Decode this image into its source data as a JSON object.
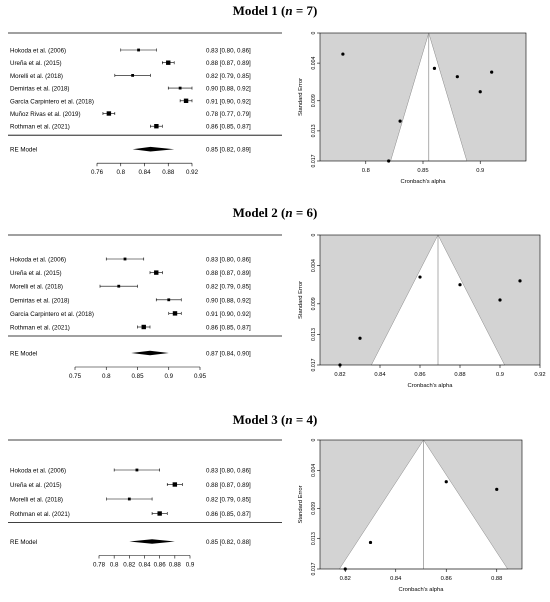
{
  "chart_data": [
    {
      "type": "forest",
      "title": "Model 1 (n = 7)",
      "title_main": "Model 1",
      "title_n": "n",
      "title_eq": " = 7",
      "studies": [
        {
          "label": "Hokoda et al. (2006)",
          "est": 0.83,
          "lo": 0.8,
          "hi": 0.86,
          "ci_text": "0.83 [0.80, 0.86]"
        },
        {
          "label": "Ureña et al. (2015)",
          "est": 0.88,
          "lo": 0.87,
          "hi": 0.89,
          "ci_text": "0.88 [0.87, 0.89]"
        },
        {
          "label": "Morelli et al. (2018)",
          "est": 0.82,
          "lo": 0.79,
          "hi": 0.85,
          "ci_text": "0.82 [0.79, 0.85]"
        },
        {
          "label": "Demirtas et al. (2018)",
          "est": 0.9,
          "lo": 0.88,
          "hi": 0.92,
          "ci_text": "0.90 [0.88, 0.92]"
        },
        {
          "label": "García Carpintero et al. (2018)",
          "est": 0.91,
          "lo": 0.9,
          "hi": 0.92,
          "ci_text": "0.91 [0.90, 0.92]"
        },
        {
          "label": "Muñoz Rivas et al. (2019)",
          "est": 0.78,
          "lo": 0.77,
          "hi": 0.79,
          "ci_text": "0.78 [0.77, 0.79]"
        },
        {
          "label": "Rothman et al. (2021)",
          "est": 0.86,
          "lo": 0.85,
          "hi": 0.87,
          "ci_text": "0.86 [0.85, 0.87]"
        }
      ],
      "re_model": {
        "label": "RE Model",
        "est": 0.85,
        "lo": 0.82,
        "hi": 0.89,
        "ci_text": "0.85 [0.82, 0.89]"
      },
      "xticks": [
        0.76,
        0.8,
        0.84,
        0.88,
        0.92
      ],
      "xtick_labels": [
        "0.76",
        "0.8",
        "0.84",
        "0.88",
        "0.92"
      ],
      "xlim": [
        0.76,
        0.92
      ]
    },
    {
      "type": "funnel",
      "xlabel": "Cronbach's alpha",
      "ylabel": "Standard Error",
      "xlim": [
        0.76,
        0.94
      ],
      "ylim": [
        0,
        0.017
      ],
      "xticks": [
        0.8,
        0.85,
        0.9
      ],
      "xtick_labels": [
        "0.8",
        "0.85",
        "0.9"
      ],
      "yticks": [
        0,
        0.004,
        0.009,
        0.013,
        0.017
      ],
      "ytick_labels": [
        "0",
        "0.004",
        "0.009",
        "0.013",
        "0.017"
      ],
      "center": 0.855,
      "points": [
        [
          0.78,
          0.0028
        ],
        [
          0.86,
          0.0047
        ],
        [
          0.88,
          0.0058
        ],
        [
          0.91,
          0.0052
        ],
        [
          0.9,
          0.0078
        ],
        [
          0.83,
          0.0117
        ],
        [
          0.82,
          0.017
        ]
      ]
    },
    {
      "type": "forest",
      "title": "Model 2 (n = 6)",
      "title_main": "Model 2",
      "title_n": "n",
      "title_eq": " = 6",
      "studies": [
        {
          "label": "Hokoda et al. (2006)",
          "est": 0.83,
          "lo": 0.8,
          "hi": 0.86,
          "ci_text": "0.83 [0.80, 0.86]"
        },
        {
          "label": "Ureña et al. (2015)",
          "est": 0.88,
          "lo": 0.87,
          "hi": 0.89,
          "ci_text": "0.88 [0.87, 0.89]"
        },
        {
          "label": "Morelli et al. (2018)",
          "est": 0.82,
          "lo": 0.79,
          "hi": 0.85,
          "ci_text": "0.82 [0.79, 0.85]"
        },
        {
          "label": "Demirtas et al. (2018)",
          "est": 0.9,
          "lo": 0.88,
          "hi": 0.92,
          "ci_text": "0.90 [0.88, 0.92]"
        },
        {
          "label": "García Carpintero et al. (2018)",
          "est": 0.91,
          "lo": 0.9,
          "hi": 0.92,
          "ci_text": "0.91 [0.90, 0.92]"
        },
        {
          "label": "Rothman et al. (2021)",
          "est": 0.86,
          "lo": 0.85,
          "hi": 0.87,
          "ci_text": "0.86 [0.85, 0.87]"
        }
      ],
      "re_model": {
        "label": "RE Model",
        "est": 0.87,
        "lo": 0.84,
        "hi": 0.9,
        "ci_text": "0.87 [0.84, 0.90]"
      },
      "xticks": [
        0.75,
        0.8,
        0.85,
        0.9,
        0.95
      ],
      "xtick_labels": [
        "0.75",
        "0.8",
        "0.85",
        "0.9",
        "0.95"
      ],
      "xlim": [
        0.75,
        0.95
      ]
    },
    {
      "type": "funnel",
      "xlabel": "Cronbach's alpha",
      "ylabel": "Standard Error",
      "xlim": [
        0.81,
        0.92
      ],
      "ylim": [
        0,
        0.017
      ],
      "xticks": [
        0.82,
        0.84,
        0.86,
        0.88,
        0.9,
        0.92
      ],
      "xtick_labels": [
        "0.82",
        "0.84",
        "0.86",
        "0.88",
        "0.9",
        "0.92"
      ],
      "yticks": [
        0,
        0.004,
        0.009,
        0.013,
        0.017
      ],
      "ytick_labels": [
        "0",
        "0.004",
        "0.009",
        "0.013",
        "0.017"
      ],
      "center": 0.869,
      "points": [
        [
          0.86,
          0.0055
        ],
        [
          0.88,
          0.0065
        ],
        [
          0.91,
          0.006
        ],
        [
          0.9,
          0.0085
        ],
        [
          0.83,
          0.0135
        ],
        [
          0.82,
          0.017
        ]
      ]
    },
    {
      "type": "forest",
      "title": "Model 3 (n = 4)",
      "title_main": "Model 3",
      "title_n": "n",
      "title_eq": " = 4",
      "studies": [
        {
          "label": "Hokoda et al. (2006)",
          "est": 0.83,
          "lo": 0.8,
          "hi": 0.86,
          "ci_text": "0.83 [0.80, 0.86]"
        },
        {
          "label": "Ureña et al. (2015)",
          "est": 0.88,
          "lo": 0.87,
          "hi": 0.89,
          "ci_text": "0.88 [0.87, 0.89]"
        },
        {
          "label": "Morelli et al. (2018)",
          "est": 0.82,
          "lo": 0.79,
          "hi": 0.85,
          "ci_text": "0.82 [0.79, 0.85]"
        },
        {
          "label": "Rothman et al. (2021)",
          "est": 0.86,
          "lo": 0.85,
          "hi": 0.87,
          "ci_text": "0.86 [0.85, 0.87]"
        }
      ],
      "re_model": {
        "label": "RE Model",
        "est": 0.85,
        "lo": 0.82,
        "hi": 0.88,
        "ci_text": "0.85 [0.82, 0.88]"
      },
      "xticks": [
        0.78,
        0.8,
        0.82,
        0.84,
        0.86,
        0.88,
        0.9
      ],
      "xtick_labels": [
        "0.78",
        "0.8",
        "0.82",
        "0.84",
        "0.86",
        "0.88",
        "0.9"
      ],
      "xlim": [
        0.78,
        0.9
      ]
    },
    {
      "type": "funnel",
      "xlabel": "Cronbach's alpha",
      "ylabel": "Standard Error",
      "xlim": [
        0.81,
        0.89
      ],
      "ylim": [
        0,
        0.017
      ],
      "xticks": [
        0.82,
        0.84,
        0.86,
        0.88
      ],
      "xtick_labels": [
        "0.82",
        "0.84",
        "0.86",
        "0.88"
      ],
      "yticks": [
        0,
        0.004,
        0.009,
        0.013,
        0.017
      ],
      "ytick_labels": [
        "0",
        "0.004",
        "0.009",
        "0.013",
        "0.017"
      ],
      "center": 0.851,
      "points": [
        [
          0.86,
          0.0055
        ],
        [
          0.88,
          0.0065
        ],
        [
          0.83,
          0.0135
        ],
        [
          0.82,
          0.017
        ]
      ]
    }
  ]
}
